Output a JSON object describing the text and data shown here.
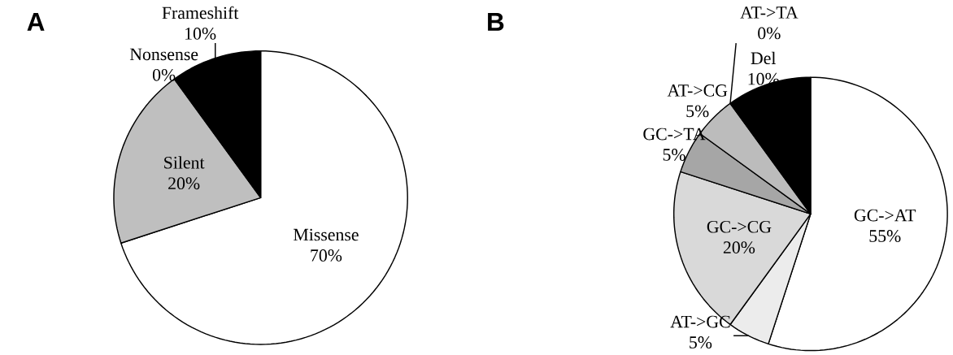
{
  "chart_data": [
    {
      "type": "pie",
      "title": "A",
      "categories": [
        "Missense",
        "Silent",
        "Nonsense",
        "Frameshift"
      ],
      "values": [
        70,
        20,
        0,
        10
      ],
      "colors": [
        "#ffffff",
        "#bfbfbf",
        "#808080",
        "#000000"
      ],
      "value_labels": [
        "70%",
        "20%",
        "0%",
        "10%"
      ]
    },
    {
      "type": "pie",
      "title": "B",
      "categories": [
        "GC->AT",
        "AT->GC",
        "GC->CG",
        "GC->TA",
        "AT->CG",
        "AT->TA",
        "Del"
      ],
      "values": [
        55,
        5,
        20,
        5,
        5,
        0,
        10
      ],
      "colors": [
        "#ffffff",
        "#ececec",
        "#d9d9d9",
        "#a6a6a6",
        "#bcbcbc",
        "#808080",
        "#000000"
      ],
      "value_labels": [
        "55%",
        "5%",
        "20%",
        "5%",
        "5%",
        "0%",
        "10%"
      ]
    }
  ]
}
